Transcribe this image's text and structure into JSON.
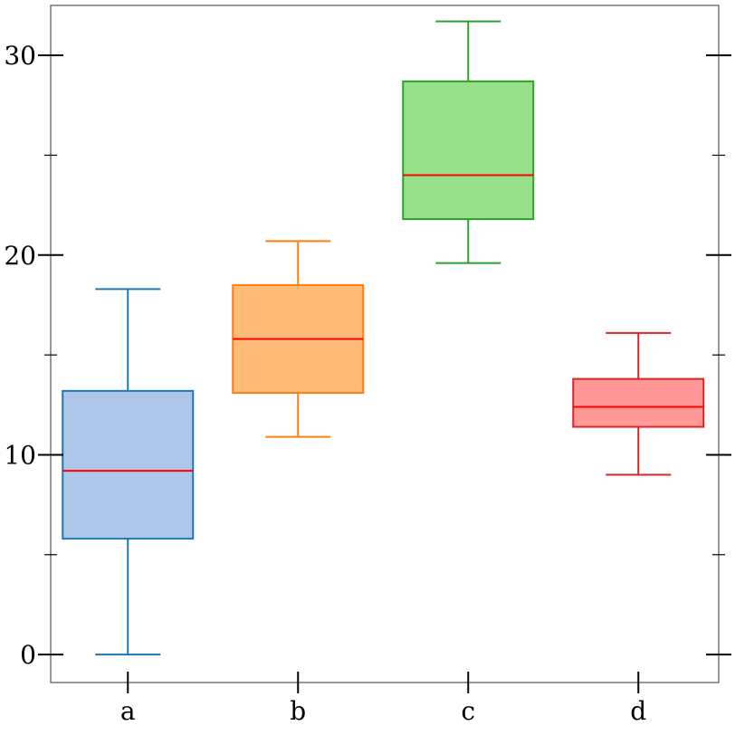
{
  "chart_data": {
    "type": "box",
    "categories": [
      "a",
      "b",
      "c",
      "d"
    ],
    "ylim": [
      -1.4,
      32.5
    ],
    "yticks_major": [
      0,
      10,
      20,
      30
    ],
    "yticks_minor": [
      5,
      15,
      25
    ],
    "grid": false,
    "series": [
      {
        "category": "a",
        "whisker_low": 0.0,
        "q1": 5.8,
        "median": 9.2,
        "q3": 13.2,
        "whisker_high": 18.3,
        "fill": "#aec7e8",
        "edge": "#1f77b4"
      },
      {
        "category": "b",
        "whisker_low": 10.9,
        "q1": 13.1,
        "median": 15.8,
        "q3": 18.5,
        "whisker_high": 20.7,
        "fill": "#ffbb78",
        "edge": "#ff7f0e"
      },
      {
        "category": "c",
        "whisker_low": 19.6,
        "q1": 21.8,
        "median": 24.0,
        "q3": 28.7,
        "whisker_high": 31.7,
        "fill": "#98df8a",
        "edge": "#2ca02c"
      },
      {
        "category": "d",
        "whisker_low": 9.0,
        "q1": 11.4,
        "median": 12.4,
        "q3": 13.8,
        "whisker_high": 16.1,
        "fill": "#ff9896",
        "edge": "#d62728"
      }
    ],
    "median_color": "#ff0000"
  }
}
